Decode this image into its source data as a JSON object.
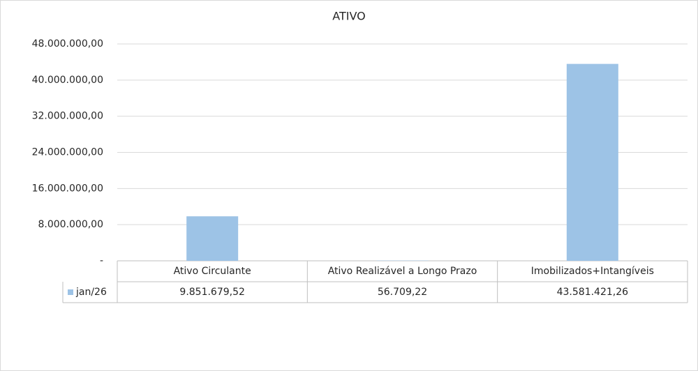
{
  "chart_data": {
    "type": "bar",
    "title": "ATIVO",
    "categories": [
      "Ativo Circulante",
      "Ativo Realizável a Longo Prazo",
      "Imobilizados+Intangíveis"
    ],
    "series": [
      {
        "name": "jan/26",
        "color": "#9dc3e6",
        "values": [
          9851679.52,
          56709.22,
          43581421.26
        ],
        "value_labels": [
          "9.851.679,52",
          "56.709,22",
          "43.581.421,26"
        ]
      }
    ],
    "ylim": [
      0,
      48000000
    ],
    "yticks": [
      {
        "value": 0,
        "label": "-"
      },
      {
        "value": 8000000,
        "label": "8.000.000,00"
      },
      {
        "value": 16000000,
        "label": "16.000.000,00"
      },
      {
        "value": 24000000,
        "label": "24.000.000,00"
      },
      {
        "value": 32000000,
        "label": "32.000.000,00"
      },
      {
        "value": 40000000,
        "label": "40.000.000,00"
      },
      {
        "value": 48000000,
        "label": "48.000.000,00"
      }
    ],
    "grid": true
  }
}
